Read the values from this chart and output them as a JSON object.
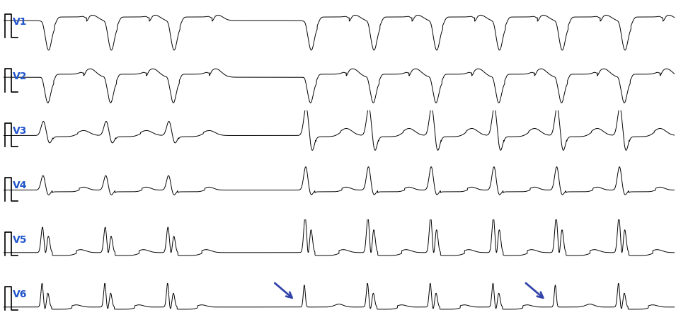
{
  "leads": [
    "V1",
    "V2",
    "V3",
    "V4",
    "V5",
    "V6"
  ],
  "background_color": "#ffffff",
  "line_color": "#000000",
  "label_color": "#2255cc",
  "label_fontsize": 10,
  "arrow_color": "#3344aa",
  "n_rows": 6,
  "beat_times": [
    0.25,
    0.68,
    1.11,
    2.05,
    2.48,
    2.91,
    3.34,
    3.77,
    4.2
  ],
  "total_time": 4.6,
  "xlim": [
    0,
    4.6
  ],
  "ylim_v1": [
    -1.2,
    0.7
  ],
  "ylim_v2": [
    -1.0,
    0.7
  ],
  "ylim_v3": [
    -0.9,
    0.85
  ],
  "ylim_v4": [
    -0.9,
    0.85
  ],
  "ylim_v5": [
    -0.5,
    0.9
  ],
  "ylim_v6": [
    -0.5,
    0.9
  ],
  "arrow1_time": 1.95,
  "arrow2_time": 3.67
}
